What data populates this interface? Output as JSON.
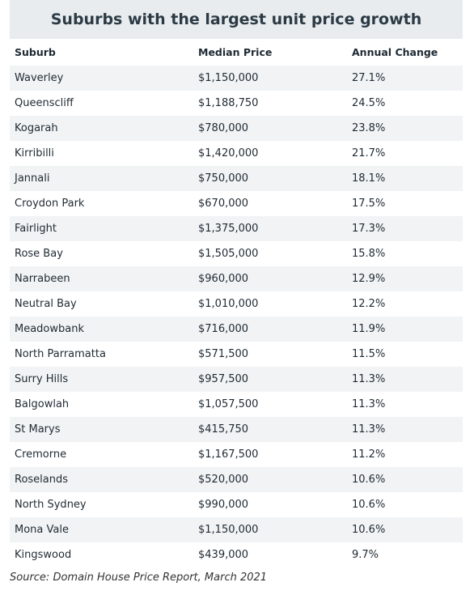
{
  "title": "Suburbs with the largest unit price growth",
  "table": {
    "header": [
      "Suburb",
      "Median Price",
      "Annual Change"
    ],
    "rows": [
      [
        "Waverley",
        "$1,150,000",
        "27.1%"
      ],
      [
        "Queenscliff",
        "$1,188,750",
        "24.5%"
      ],
      [
        "Kogarah",
        "$780,000",
        "23.8%"
      ],
      [
        "Kirribilli",
        "$1,420,000",
        "21.7%"
      ],
      [
        "Jannali",
        "$750,000",
        "18.1%"
      ],
      [
        "Croydon Park",
        "$670,000",
        "17.5%"
      ],
      [
        "Fairlight",
        "$1,375,000",
        "17.3%"
      ],
      [
        "Rose Bay",
        "$1,505,000",
        "15.8%"
      ],
      [
        "Narrabeen",
        "$960,000",
        "12.9%"
      ],
      [
        "Neutral Bay",
        "$1,010,000",
        "12.2%"
      ],
      [
        "Meadowbank",
        "$716,000",
        "11.9%"
      ],
      [
        "North Parramatta",
        "$571,500",
        "11.5%"
      ],
      [
        "Surry Hills",
        "$957,500",
        "11.3%"
      ],
      [
        "Balgowlah",
        "$1,057,500",
        "11.3%"
      ],
      [
        "St Marys",
        "$415,750",
        "11.3%"
      ],
      [
        "Cremorne",
        "$1,167,500",
        "11.2%"
      ],
      [
        "Roselands",
        "$520,000",
        "10.6%"
      ],
      [
        "North Sydney",
        "$990,000",
        "10.6%"
      ],
      [
        "Mona Vale",
        "$1,150,000",
        "10.6%"
      ],
      [
        "Kingswood",
        "$439,000",
        "9.7%"
      ]
    ]
  },
  "source": "Source: Domain House Price Report, March 2021"
}
